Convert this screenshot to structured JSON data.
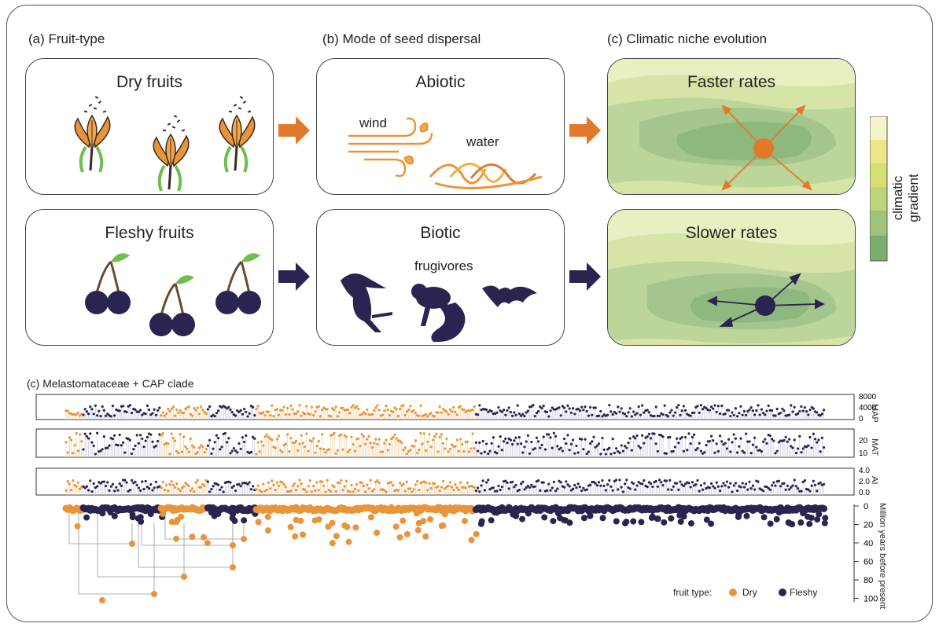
{
  "panels": {
    "a_title": "(a) Fruit-type",
    "b_title": "(b) Mode of seed dispersal",
    "c_title": "(c) Climatic niche evolution"
  },
  "boxes": {
    "dry": "Dry fruits",
    "fleshy": "Fleshy fruits",
    "abiotic": "Abiotic",
    "biotic": "Biotic",
    "faster": "Faster rates",
    "slower": "Slower rates"
  },
  "labels": {
    "wind": "wind",
    "water": "water",
    "frugivores": "frugivores",
    "gradient": "climatic gradient"
  },
  "colors": {
    "dry": "#e8943a",
    "fleshy": "#2b2450",
    "accent_orange": "#e07a2a"
  },
  "bottom": {
    "title": "(c) Melastomataceae + CAP clade",
    "tracks": [
      {
        "name": "MAP",
        "ticks": [
          "8000",
          "4000",
          "0"
        ]
      },
      {
        "name": "MAT",
        "ticks": [
          "20",
          "10"
        ]
      },
      {
        "name": "AI",
        "ticks": [
          "4.0",
          "2.0",
          "0.0"
        ]
      }
    ],
    "time_axis_label": "Million years before present",
    "time_ticks": [
      "0",
      "20",
      "40",
      "60",
      "80",
      "100"
    ],
    "legend": {
      "title": "fruit type:",
      "dry": "Dry",
      "fleshy": "Fleshy"
    }
  }
}
